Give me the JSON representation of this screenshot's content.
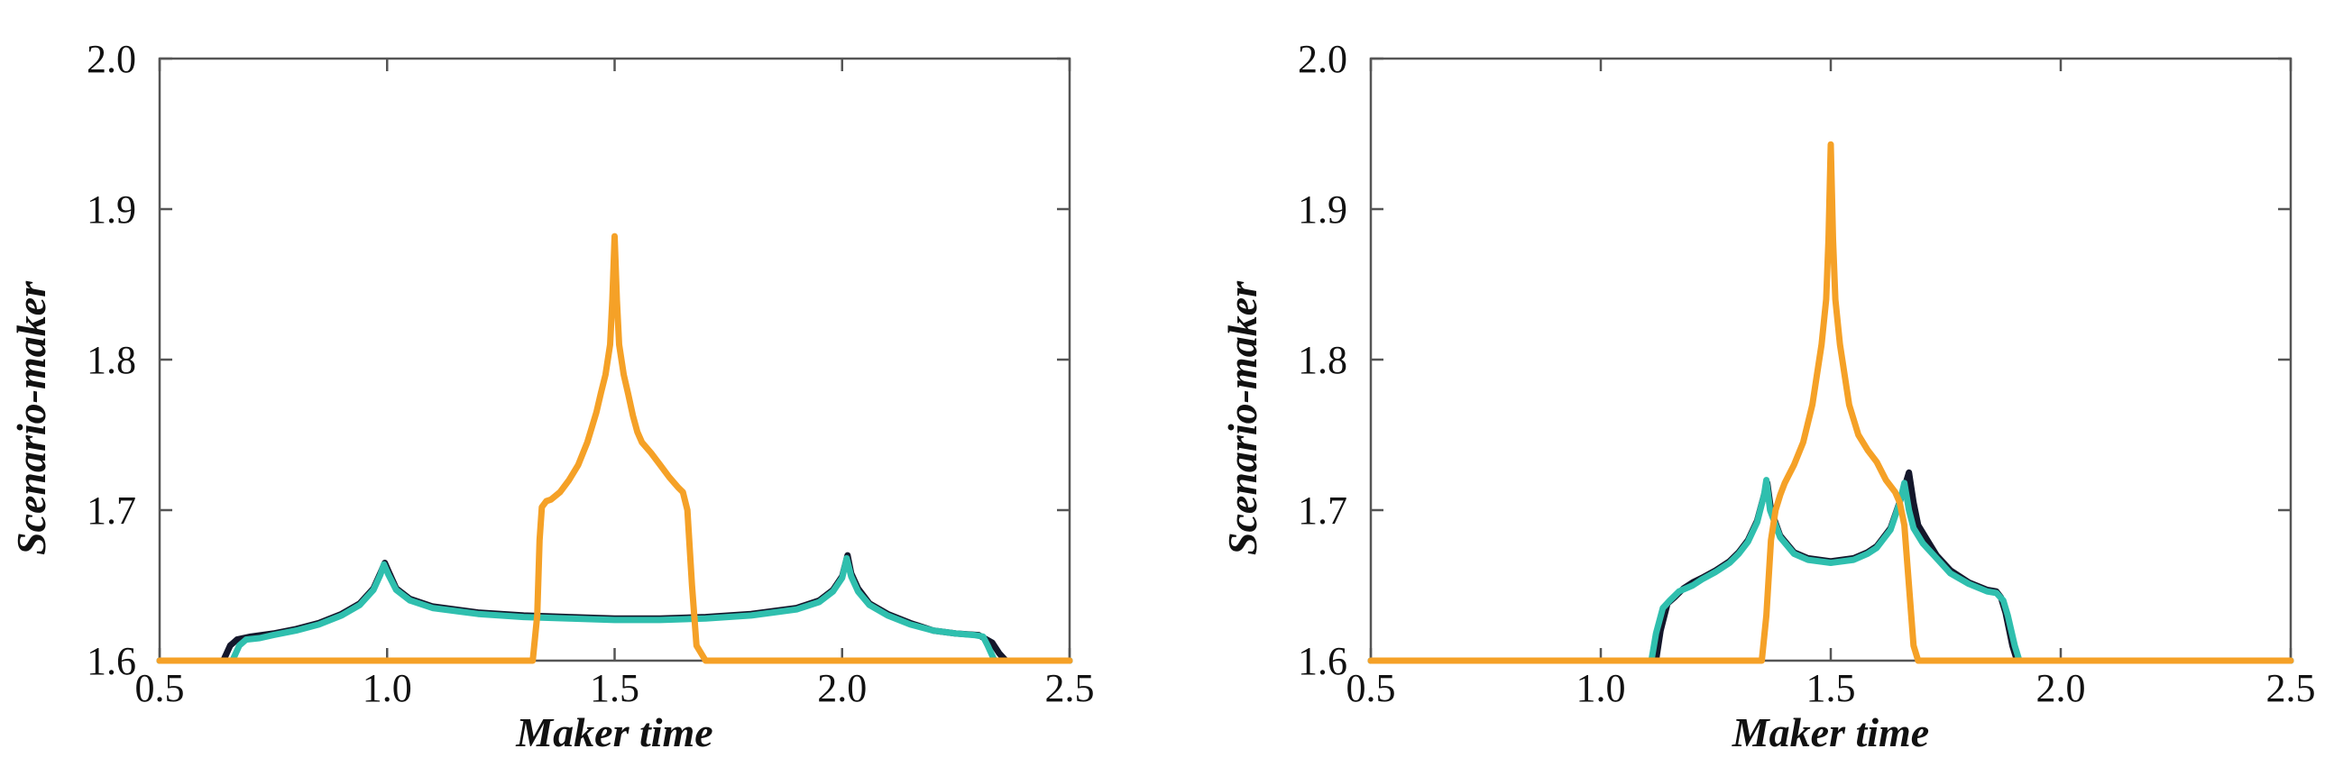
{
  "chart_data": [
    {
      "type": "line",
      "xlabel": "Maker time",
      "ylabel": "Scenario-maker",
      "xlim": [
        0.5,
        2.5
      ],
      "ylim": [
        1.6,
        2.0
      ],
      "xticks": [
        "0.5",
        "1.0",
        "1.5",
        "2.0",
        "2.5"
      ],
      "yticks": [
        "1.6",
        "1.7",
        "1.8",
        "1.9",
        "2.0"
      ],
      "grid": false,
      "series": [
        {
          "color": "#14172b",
          "width": 7,
          "x": [
            0.5,
            0.64,
            0.655,
            0.67,
            0.7,
            0.75,
            0.8,
            0.85,
            0.9,
            0.94,
            0.97,
            0.985,
            0.995,
            1.005,
            1.02,
            1.05,
            1.1,
            1.2,
            1.3,
            1.4,
            1.5,
            1.6,
            1.7,
            1.8,
            1.9,
            1.95,
            1.98,
            2.0,
            2.012,
            2.02,
            2.035,
            2.06,
            2.1,
            2.15,
            2.2,
            2.25,
            2.3,
            2.33,
            2.345,
            2.36,
            2.5
          ],
          "y": [
            1.6,
            1.6,
            1.61,
            1.614,
            1.616,
            1.618,
            1.621,
            1.625,
            1.631,
            1.638,
            1.648,
            1.658,
            1.665,
            1.658,
            1.648,
            1.641,
            1.636,
            1.632,
            1.63,
            1.629,
            1.628,
            1.628,
            1.629,
            1.631,
            1.635,
            1.64,
            1.647,
            1.656,
            1.67,
            1.658,
            1.648,
            1.638,
            1.631,
            1.625,
            1.62,
            1.618,
            1.617,
            1.612,
            1.605,
            1.6,
            1.6
          ]
        },
        {
          "color": "#2fbfae",
          "width": 7,
          "x": [
            0.5,
            0.66,
            0.675,
            0.69,
            0.72,
            0.75,
            0.8,
            0.85,
            0.9,
            0.94,
            0.97,
            0.985,
            0.993,
            1.003,
            1.02,
            1.05,
            1.1,
            1.2,
            1.3,
            1.4,
            1.5,
            1.6,
            1.7,
            1.8,
            1.9,
            1.95,
            1.98,
            2.0,
            2.01,
            2.02,
            2.035,
            2.06,
            2.1,
            2.15,
            2.2,
            2.25,
            2.29,
            2.31,
            2.32,
            2.335,
            2.5
          ],
          "y": [
            1.6,
            1.6,
            1.61,
            1.614,
            1.615,
            1.617,
            1.62,
            1.624,
            1.63,
            1.637,
            1.647,
            1.657,
            1.664,
            1.657,
            1.647,
            1.64,
            1.635,
            1.631,
            1.629,
            1.628,
            1.627,
            1.627,
            1.628,
            1.63,
            1.634,
            1.639,
            1.646,
            1.655,
            1.668,
            1.656,
            1.646,
            1.637,
            1.63,
            1.624,
            1.62,
            1.618,
            1.617,
            1.616,
            1.61,
            1.6,
            1.6
          ]
        },
        {
          "color": "#f5a127",
          "width": 7,
          "x": [
            0.5,
            1.32,
            1.33,
            1.335,
            1.34,
            1.35,
            1.36,
            1.38,
            1.4,
            1.42,
            1.44,
            1.46,
            1.47,
            1.48,
            1.49,
            1.495,
            1.5,
            1.505,
            1.51,
            1.52,
            1.53,
            1.54,
            1.55,
            1.56,
            1.58,
            1.6,
            1.62,
            1.64,
            1.65,
            1.66,
            1.67,
            1.68,
            1.7,
            2.5
          ],
          "y": [
            1.6,
            1.6,
            1.63,
            1.68,
            1.702,
            1.706,
            1.707,
            1.712,
            1.72,
            1.73,
            1.745,
            1.765,
            1.778,
            1.79,
            1.81,
            1.84,
            1.882,
            1.84,
            1.81,
            1.79,
            1.777,
            1.763,
            1.752,
            1.745,
            1.738,
            1.73,
            1.722,
            1.715,
            1.712,
            1.7,
            1.65,
            1.61,
            1.6,
            1.6
          ]
        }
      ]
    },
    {
      "type": "line",
      "xlabel": "Maker time",
      "ylabel": "Scenario-maker",
      "xlim": [
        0.5,
        2.5
      ],
      "ylim": [
        1.6,
        2.0
      ],
      "xticks": [
        "0.5",
        "1.0",
        "1.5",
        "2.0",
        "2.5"
      ],
      "yticks": [
        "1.6",
        "1.7",
        "1.8",
        "1.9",
        "2.0"
      ],
      "grid": false,
      "series": [
        {
          "color": "#14172b",
          "width": 7,
          "x": [
            0.5,
            1.12,
            1.13,
            1.145,
            1.16,
            1.18,
            1.2,
            1.22,
            1.25,
            1.28,
            1.3,
            1.32,
            1.34,
            1.355,
            1.362,
            1.37,
            1.39,
            1.42,
            1.45,
            1.5,
            1.55,
            1.58,
            1.6,
            1.63,
            1.655,
            1.67,
            1.68,
            1.69,
            1.71,
            1.73,
            1.76,
            1.8,
            1.84,
            1.86,
            1.87,
            1.88,
            1.895,
            1.905,
            2.5
          ],
          "y": [
            1.6,
            1.6,
            1.62,
            1.638,
            1.642,
            1.648,
            1.652,
            1.655,
            1.66,
            1.666,
            1.672,
            1.68,
            1.693,
            1.71,
            1.718,
            1.7,
            1.683,
            1.672,
            1.668,
            1.666,
            1.668,
            1.672,
            1.676,
            1.688,
            1.71,
            1.725,
            1.705,
            1.69,
            1.68,
            1.67,
            1.66,
            1.652,
            1.647,
            1.646,
            1.642,
            1.632,
            1.61,
            1.6,
            1.6
          ]
        },
        {
          "color": "#2fbfae",
          "width": 7,
          "x": [
            0.5,
            1.11,
            1.12,
            1.135,
            1.15,
            1.17,
            1.2,
            1.22,
            1.25,
            1.28,
            1.3,
            1.32,
            1.34,
            1.355,
            1.36,
            1.368,
            1.39,
            1.42,
            1.45,
            1.5,
            1.55,
            1.58,
            1.6,
            1.63,
            1.65,
            1.66,
            1.67,
            1.68,
            1.7,
            1.73,
            1.76,
            1.8,
            1.84,
            1.86,
            1.875,
            1.885,
            1.9,
            1.91,
            2.5
          ],
          "y": [
            1.6,
            1.6,
            1.618,
            1.635,
            1.64,
            1.646,
            1.65,
            1.654,
            1.659,
            1.665,
            1.671,
            1.679,
            1.692,
            1.71,
            1.72,
            1.7,
            1.682,
            1.671,
            1.667,
            1.665,
            1.667,
            1.671,
            1.675,
            1.687,
            1.705,
            1.718,
            1.7,
            1.688,
            1.678,
            1.668,
            1.658,
            1.651,
            1.646,
            1.645,
            1.64,
            1.63,
            1.61,
            1.6,
            1.6
          ]
        },
        {
          "color": "#f5a127",
          "width": 7,
          "x": [
            0.5,
            1.35,
            1.36,
            1.37,
            1.38,
            1.39,
            1.4,
            1.42,
            1.44,
            1.46,
            1.47,
            1.48,
            1.49,
            1.495,
            1.5,
            1.505,
            1.51,
            1.52,
            1.53,
            1.54,
            1.56,
            1.58,
            1.6,
            1.62,
            1.64,
            1.65,
            1.66,
            1.67,
            1.68,
            1.69,
            2.5
          ],
          "y": [
            1.6,
            1.6,
            1.63,
            1.68,
            1.7,
            1.71,
            1.718,
            1.73,
            1.745,
            1.77,
            1.79,
            1.81,
            1.84,
            1.88,
            1.943,
            1.88,
            1.84,
            1.81,
            1.79,
            1.77,
            1.75,
            1.74,
            1.732,
            1.72,
            1.712,
            1.705,
            1.69,
            1.65,
            1.61,
            1.6,
            1.6
          ]
        }
      ]
    }
  ]
}
